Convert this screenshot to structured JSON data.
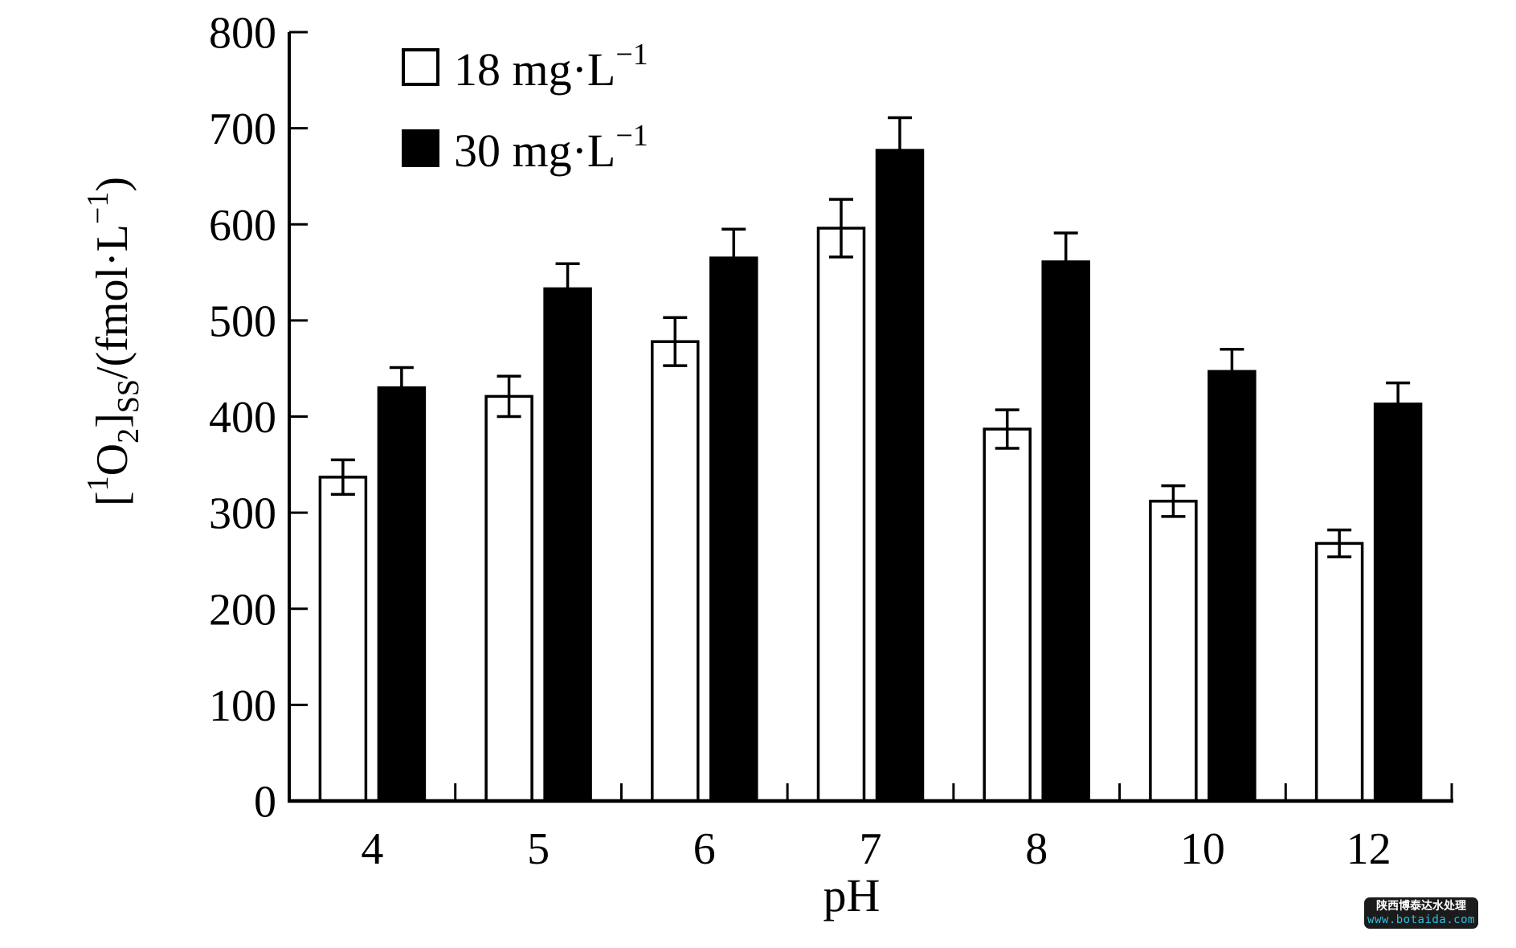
{
  "chart_data": {
    "type": "bar",
    "title": "",
    "xlabel": "pH",
    "ylabel": "[1O2]SS/(fmol·L−1)",
    "ylabel_segments": [
      {
        "t": "[",
        "s": "n"
      },
      {
        "t": "1",
        "s": "sup"
      },
      {
        "t": "O",
        "s": "n"
      },
      {
        "t": "2",
        "s": "sub"
      },
      {
        "t": "]",
        "s": "n"
      },
      {
        "t": "SS",
        "s": "sub"
      },
      {
        "t": "/(fmol·L",
        "s": "n"
      },
      {
        "t": "−1",
        "s": "sup"
      },
      {
        "t": ")",
        "s": "n"
      }
    ],
    "categories": [
      "4",
      "5",
      "6",
      "7",
      "8",
      "10",
      "12"
    ],
    "ylim": [
      0,
      800
    ],
    "yticks": [
      0,
      100,
      200,
      300,
      400,
      500,
      600,
      700,
      800
    ],
    "grid": false,
    "legend_position": "upper-left-inside",
    "series": [
      {
        "key": "18",
        "name": "18 mg·L−1",
        "legend_segments": [
          {
            "t": "18 mg·L",
            "s": "n"
          },
          {
            "t": "−1",
            "s": "sup"
          }
        ],
        "fill": "#ffffff",
        "stroke": "#000000",
        "values": [
          337,
          421,
          478,
          596,
          387,
          312,
          268
        ],
        "errors": [
          18,
          21,
          25,
          30,
          20,
          16,
          14
        ]
      },
      {
        "key": "30",
        "name": "30 mg·L−1",
        "legend_segments": [
          {
            "t": "30 mg·L",
            "s": "n"
          },
          {
            "t": "−1",
            "s": "sup"
          }
        ],
        "fill": "#000000",
        "stroke": "#000000",
        "values": [
          430,
          533,
          565,
          677,
          561,
          447,
          413
        ],
        "errors": [
          21,
          26,
          30,
          34,
          30,
          23,
          22
        ]
      }
    ]
  },
  "watermark": {
    "line1": "陕西博泰达水处理",
    "line2": "www.botaida.com",
    "bg_color": "#1b1b1b",
    "line1_color": "#ffffff",
    "line2_color": "#2bc0e4"
  }
}
